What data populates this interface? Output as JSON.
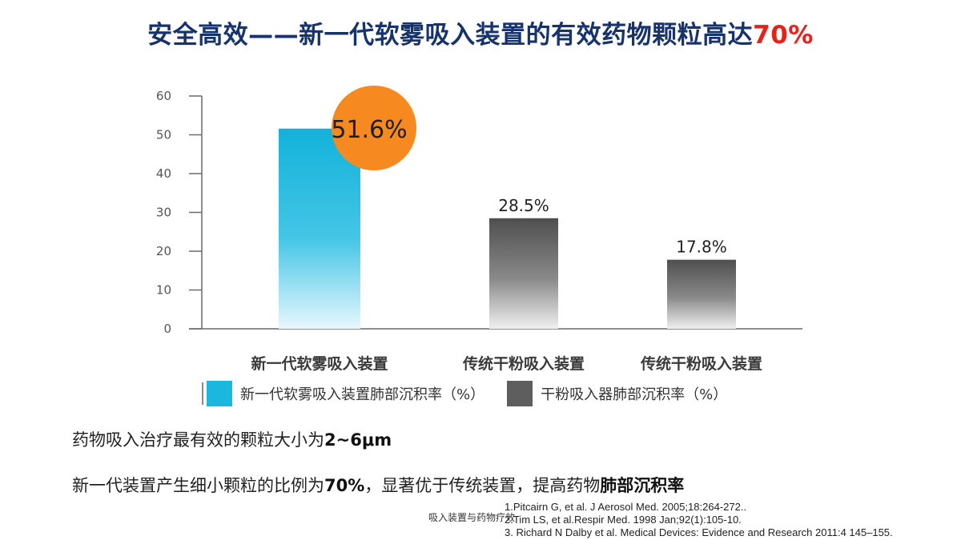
{
  "title": {
    "main": "安全高效——新一代软雾吸入装置的有效药物颗粒高达",
    "accent": "70%"
  },
  "colors": {
    "title": "#17336b",
    "accent": "#e8221b",
    "bar_soft_mist": "#1ab8dc",
    "bar_dry_powder": "#5a5a5a",
    "highlight_circle": "#f6891f"
  },
  "chart_data": {
    "type": "bar",
    "categories": [
      "新一代软雾吸入装置",
      "传统干粉吸入装置",
      "传统干粉吸入装置"
    ],
    "values": [
      51.6,
      28.5,
      17.8
    ],
    "value_labels": [
      "51.6%",
      "28.5%",
      "17.8%"
    ],
    "series_index": [
      0,
      1,
      1
    ],
    "series": [
      {
        "name": "新一代软雾吸入装置肺部沉积率（%）",
        "color": "#1ab8dc"
      },
      {
        "name": "干粉吸入器肺部沉积率（%）",
        "color": "#5a5a5a"
      }
    ],
    "ylim": [
      0,
      60
    ],
    "yticks": [
      0,
      10,
      20,
      30,
      40,
      50,
      60
    ],
    "highlight": "51.6%",
    "grid": false,
    "legend_position": "bottom"
  },
  "notes": {
    "line1_prefix": "药物吸入治疗最有效的颗粒大小为",
    "line1_bold": "2~6μm",
    "line2_prefix": "新一代装置产生细小颗粒的比例为",
    "line2_bold1": "70%",
    "line2_middle": "，显著优于传统装置，提高药物",
    "line2_bold2": "肺部沉积率"
  },
  "references": [
    "1.Pitcairn G, et al. J Aerosol Med. 2005;18:264-272..",
    "2.Tim LS, et al.Respir Med. 1998 Jan;92(1):105-10.",
    "3. Richard N Dalby et al. Medical Devices: Evidence and Research 2011:4 145–155."
  ],
  "overlay_caption": "吸入装置与药物疗效"
}
